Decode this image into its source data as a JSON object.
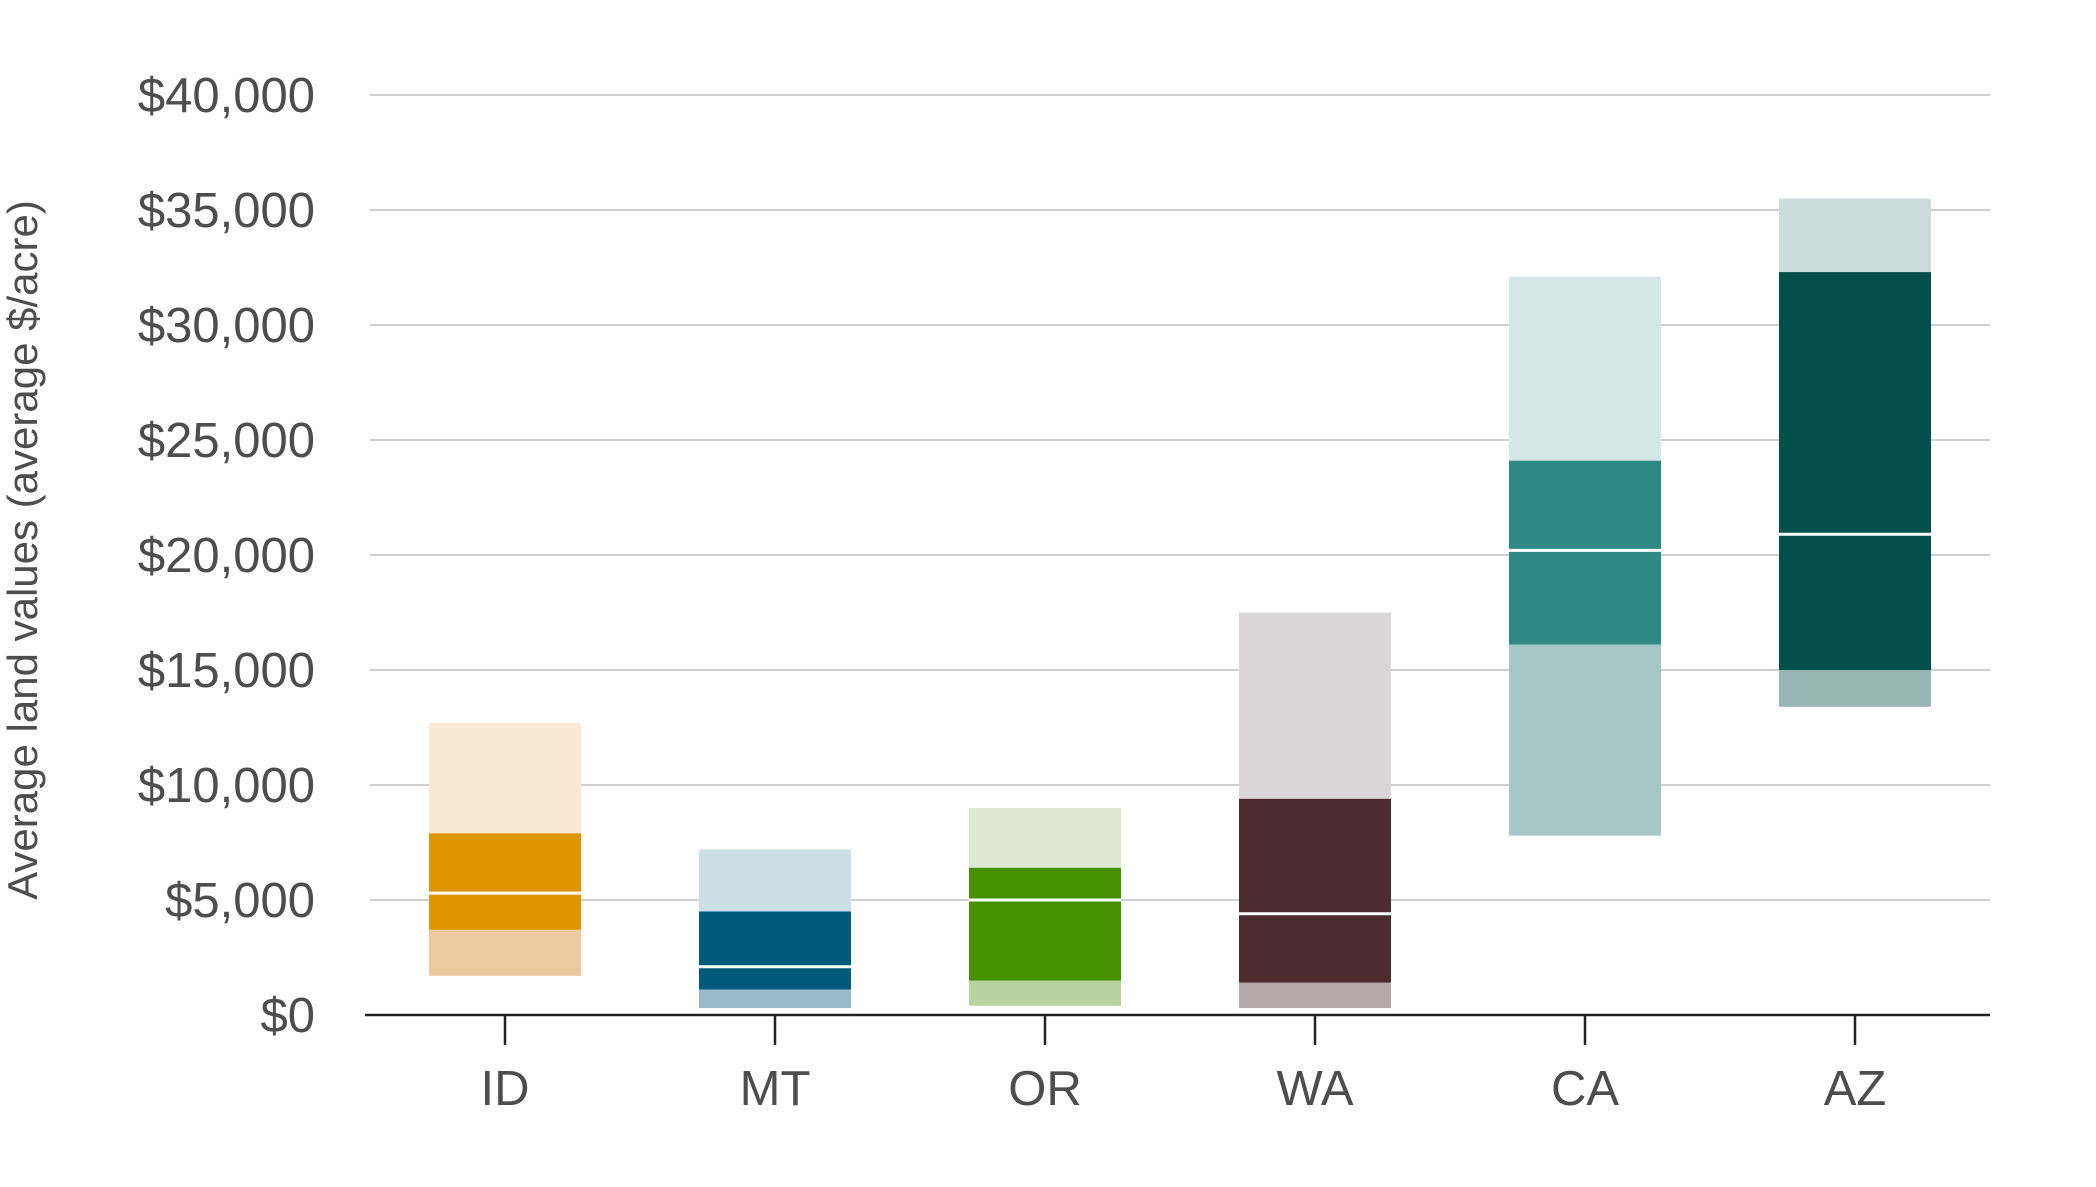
{
  "chart_data": {
    "type": "bar",
    "subtype": "floating-range",
    "ylabel": "Average land values (average $/acre)",
    "xlabel": "",
    "ylim": [
      0,
      40000
    ],
    "yticks": [
      0,
      5000,
      10000,
      15000,
      20000,
      25000,
      30000,
      35000,
      40000
    ],
    "ytick_labels": [
      "$0",
      "$5,000",
      "$10,000",
      "$15,000",
      "$20,000",
      "$25,000",
      "$30,000",
      "$35,000",
      "$40,000"
    ],
    "grid": true,
    "categories": [
      "ID",
      "MT",
      "OR",
      "WA",
      "CA",
      "AZ"
    ],
    "bars": [
      {
        "category": "ID",
        "outer_low": 1700,
        "inner_low": 3700,
        "median": 5300,
        "inner_high": 7900,
        "outer_high": 12700,
        "upper_color": "#f7e9d4",
        "main_color": "#de9600",
        "lower_color": "#eacba0"
      },
      {
        "category": "MT",
        "outer_low": 300,
        "inner_low": 1100,
        "median": 2100,
        "inner_high": 4500,
        "outer_high": 7200,
        "upper_color": "#ccdfe5",
        "main_color": "#005b7a",
        "lower_color": "#99bbc9"
      },
      {
        "category": "OR",
        "outer_low": 400,
        "inner_low": 1500,
        "median": 5000,
        "inner_high": 6400,
        "outer_high": 9000,
        "upper_color": "#dce8d1",
        "main_color": "#469100",
        "lower_color": "#b6d3a0"
      },
      {
        "category": "WA",
        "outer_low": 300,
        "inner_low": 1400,
        "median": 4400,
        "inner_high": 9400,
        "outer_high": 17500,
        "upper_color": "#dad5d7",
        "main_color": "#4b2b30",
        "lower_color": "#b6a8aa"
      },
      {
        "category": "CA",
        "outer_low": 7800,
        "inner_low": 16100,
        "median": 20200,
        "inner_high": 24100,
        "outer_high": 32100,
        "upper_color": "#d5e6e6",
        "main_color": "#2e8984",
        "lower_color": "#a7c7c6"
      },
      {
        "category": "AZ",
        "outer_low": 13400,
        "inner_low": 15000,
        "median": 20900,
        "inner_high": 32300,
        "outer_high": 35500,
        "upper_color": "#ccdbdb",
        "main_color": "#034f4c",
        "lower_color": "#99b6b5"
      }
    ]
  }
}
